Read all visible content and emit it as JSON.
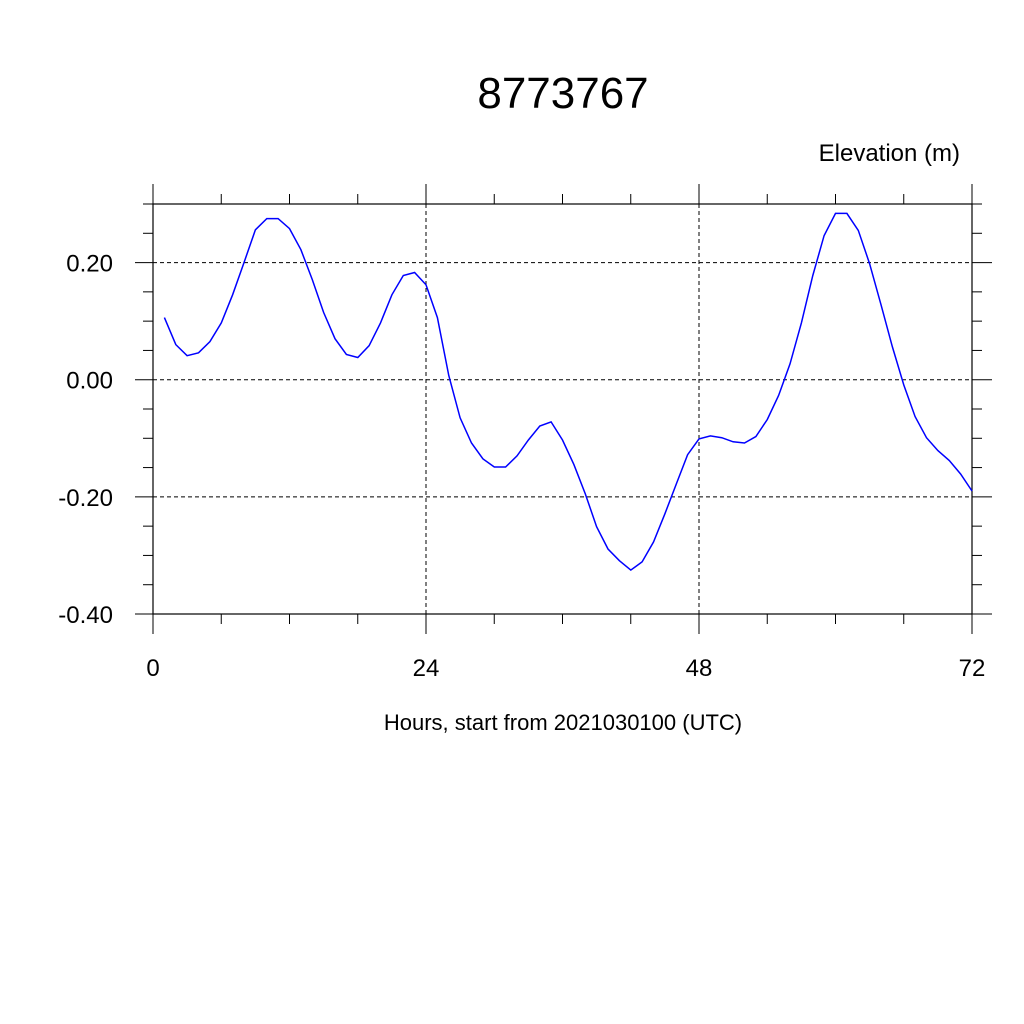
{
  "chart_data": {
    "type": "line",
    "title": "8773767",
    "ylabel": "Elevation (m)",
    "xlabel": "Hours, start from 2021030100 (UTC)",
    "xlim": [
      0,
      72
    ],
    "ylim": [
      -0.4,
      0.3
    ],
    "xticks": [
      0,
      24,
      48,
      72
    ],
    "xtick_labels": [
      "0",
      "24",
      "48",
      "72"
    ],
    "yticks": [
      0.2,
      0.0,
      -0.2,
      -0.4
    ],
    "ytick_labels": [
      "0.20",
      "0.00",
      "-0.20",
      "-0.40"
    ],
    "grid": true,
    "line_color": "#0000ff",
    "x": [
      1,
      2,
      3,
      4,
      5,
      6,
      7,
      8,
      9,
      10,
      11,
      12,
      13,
      14,
      15,
      16,
      17,
      18,
      19,
      20,
      21,
      22,
      23,
      24,
      25,
      26,
      27,
      28,
      29,
      30,
      31,
      32,
      33,
      34,
      35,
      36,
      37,
      38,
      39,
      40,
      41,
      42,
      43,
      44,
      45,
      46,
      47,
      48,
      49,
      50,
      51,
      52,
      53,
      54,
      55,
      56,
      57,
      58,
      59,
      60,
      61,
      62,
      63,
      64,
      65,
      66,
      67,
      68,
      69,
      70,
      71,
      72
    ],
    "y": [
      0.106,
      0.06,
      0.041,
      0.046,
      0.065,
      0.097,
      0.145,
      0.2,
      0.256,
      0.275,
      0.275,
      0.258,
      0.222,
      0.171,
      0.115,
      0.07,
      0.043,
      0.038,
      0.058,
      0.097,
      0.145,
      0.178,
      0.183,
      0.162,
      0.106,
      0.007,
      -0.065,
      -0.108,
      -0.135,
      -0.149,
      -0.149,
      -0.13,
      -0.103,
      -0.079,
      -0.072,
      -0.103,
      -0.145,
      -0.195,
      -0.251,
      -0.289,
      -0.309,
      -0.325,
      -0.311,
      -0.277,
      -0.229,
      -0.178,
      -0.128,
      -0.101,
      -0.096,
      -0.099,
      -0.106,
      -0.108,
      -0.097,
      -0.068,
      -0.027,
      0.027,
      0.097,
      0.178,
      0.246,
      0.284,
      0.284,
      0.255,
      0.198,
      0.128,
      0.056,
      -0.009,
      -0.063,
      -0.099,
      -0.121,
      -0.138,
      -0.161,
      -0.19
    ]
  }
}
